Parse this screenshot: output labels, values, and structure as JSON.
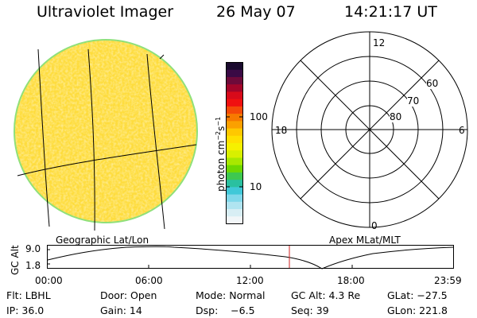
{
  "header": {
    "instrument": "Ultraviolet Imager",
    "date": "26 May 07",
    "time": "14:21:17 UT"
  },
  "colorbar": {
    "unit": "photon cm",
    "unit_exp1": "−2",
    "unit_mid": "s",
    "unit_exp2": "−1",
    "ticks": [
      "100",
      "10"
    ],
    "colors": [
      "#1a0a2e",
      "#3a0a45",
      "#6e0a3a",
      "#a3052a",
      "#d80a1a",
      "#f01010",
      "#f44a08",
      "#f77a00",
      "#fba000",
      "#ffc800",
      "#ffe000",
      "#f6f000",
      "#d8f000",
      "#a8e800",
      "#6ed800",
      "#3ec850",
      "#2ac0a0",
      "#40c8d8",
      "#80d8ea",
      "#b0e4f0",
      "#d8eef4",
      "#f2f6f8"
    ]
  },
  "polar": {
    "mlt_labels": [
      "12",
      "6",
      "0",
      "18"
    ],
    "lat_labels": [
      "60",
      "70",
      "80"
    ]
  },
  "timeline": {
    "left_label": "Geographic Lat/Lon",
    "right_label": "Apex MLat/MLT",
    "axis_label": "GC Alt",
    "ytick_top": "9.0",
    "ytick_bottom": "1.8",
    "time_ticks": [
      "00:00",
      "06:00",
      "12:00",
      "18:00",
      "23:59"
    ],
    "marker_time": "14:21:17"
  },
  "info": {
    "row1": [
      "Flt: LBHL",
      "Door: Open",
      "Mode: Normal",
      "GC Alt: 4.3 Re",
      "GLat: −27.5"
    ],
    "row2": [
      "IP: 36.0",
      "Gain: 14",
      "Dsp:    −6.5",
      "Seq: 39",
      "GLon: 221.8"
    ]
  },
  "colors": {
    "disk": "#ffe14a",
    "disk_edge": "#8fe07a",
    "marker": "#d02020"
  }
}
